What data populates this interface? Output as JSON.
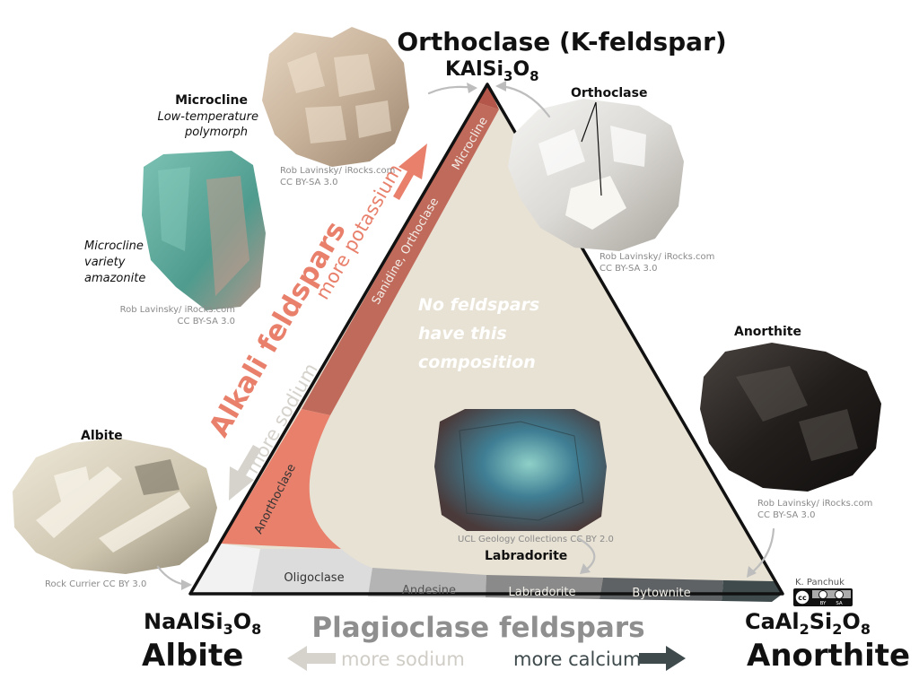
{
  "vertices": {
    "top": {
      "name": "Orthoclase (K-feldspar)",
      "formula": [
        "KAlSi",
        "3",
        "O",
        "8"
      ]
    },
    "left": {
      "name": "Albite",
      "formula": [
        "NaAlSi",
        "3",
        "O",
        "8"
      ]
    },
    "right": {
      "name": "Anorthite",
      "formula": [
        "CaAl",
        "2",
        "Si",
        "2",
        "O",
        "8"
      ]
    }
  },
  "center_note": [
    "No feldspars",
    "have this",
    "composition"
  ],
  "alkali": {
    "title": "Alkali feldspars",
    "more_potassium": "more potassium",
    "more_sodium": "more sodium",
    "fields": [
      "Microcline",
      "Sanidine, Orthoclase",
      "Anorthoclase"
    ]
  },
  "plagioclase": {
    "title": "Plagioclase feldspars",
    "more_sodium": "more sodium",
    "more_calcium": "more calcium",
    "fields": [
      "Oligoclase",
      "Andesine",
      "Labradorite",
      "Bytownite"
    ]
  },
  "minerals": {
    "microcline": {
      "name": "Microcline",
      "caption": [
        "Low-temperature",
        "polymorph"
      ],
      "credit": [
        "Rob Lavinsky/ iRocks.com",
        "CC BY-SA 3.0"
      ]
    },
    "amazonite": {
      "caption": [
        "Microcline",
        "variety",
        "amazonite"
      ],
      "credit": [
        "Rob Lavinsky/ iRocks.com",
        "CC BY-SA 3.0"
      ]
    },
    "orthoclase": {
      "name": "Orthoclase",
      "credit": [
        "Rob Lavinsky/ iRocks.com",
        "CC BY-SA 3.0"
      ]
    },
    "albite": {
      "name": "Albite",
      "credit": "Rock Currier CC BY 3.0"
    },
    "labradorite": {
      "name": "Labradorite",
      "credit": "UCL Geology Collections CC BY 2.0"
    },
    "anorthite": {
      "name": "Anorthite",
      "credit": [
        "Rob Lavinsky/ iRocks.com",
        "CC BY-SA 3.0"
      ]
    }
  },
  "author": "K. Panchuk",
  "license_badge": [
    "cc",
    "BY",
    "SA"
  ],
  "colors": {
    "triangle_fill": "#e8e2d4",
    "microcline": "#b4574a",
    "sanidine": "#c06a5c",
    "anorthoclase": "#e8806c",
    "albite_field": "#f2f2f2",
    "oligoclase": "#dcdcdc",
    "andesine": "#b4b4b4",
    "labradorite": "#8a8a8a",
    "bytownite": "#5e6264",
    "anorthite_field": "#3e4a4c",
    "alkali_text": "#e8806c",
    "plagioclase_text": "#8f8f8f"
  }
}
